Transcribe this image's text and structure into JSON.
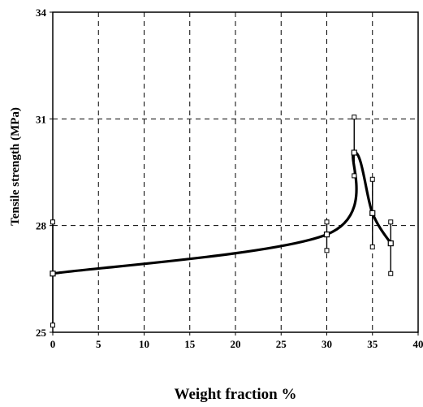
{
  "chart_data": {
    "type": "line",
    "title": "",
    "xlabel": "Weight fraction %",
    "ylabel": "Tensile strength (MPa)",
    "xlim": [
      0,
      40
    ],
    "ylim": [
      25,
      34
    ],
    "x_ticks": [
      "0",
      "5",
      "10",
      "15",
      "20",
      "25",
      "30",
      "35",
      "40"
    ],
    "y_ticks": [
      "25",
      "28",
      "31",
      "34"
    ],
    "grid": true,
    "series": [
      {
        "points": [
          {
            "x": 0,
            "y": 26.65,
            "err_low": 25.2,
            "err_high": 28.1
          },
          {
            "x": 30,
            "y": 27.75,
            "err_low": 27.3,
            "err_high": 28.1
          },
          {
            "x": 33,
            "y": 30.05,
            "err_low": 29.4,
            "err_high": 31.05
          },
          {
            "x": 35,
            "y": 28.35,
            "err_low": 27.4,
            "err_high": 29.3
          },
          {
            "x": 37,
            "y": 27.5,
            "err_low": 26.65,
            "err_high": 28.1
          }
        ]
      }
    ]
  }
}
